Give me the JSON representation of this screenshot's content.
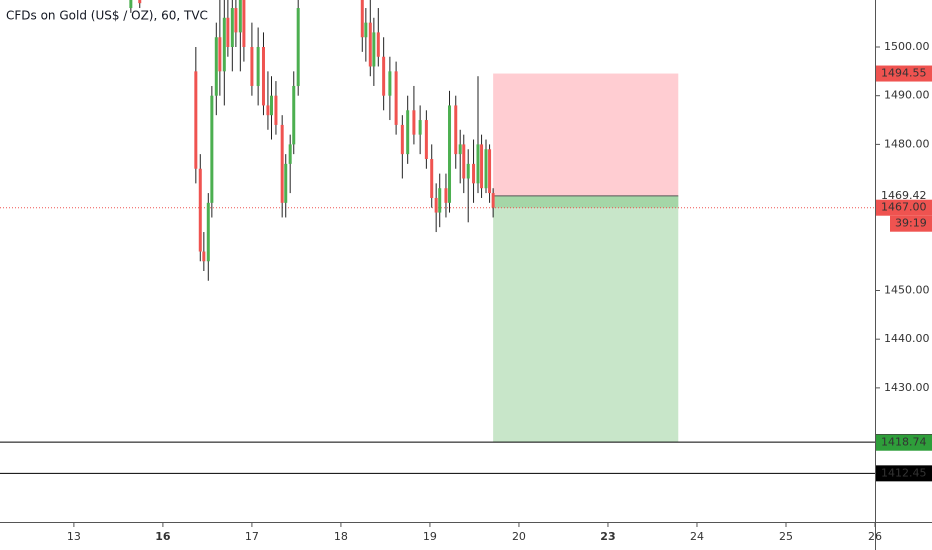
{
  "chart_data": {
    "type": "candlestick",
    "title": "CFDs on Gold (US$ / OZ), 60, TVC",
    "up_color": "#4caf50",
    "down_color": "#ef5350",
    "xlim": [
      -0.83,
      9.0
    ],
    "xticks": [
      {
        "value": 0,
        "label": "13"
      },
      {
        "value": 1,
        "label": "16"
      },
      {
        "value": 2,
        "label": "17"
      },
      {
        "value": 3,
        "label": "18"
      },
      {
        "value": 4,
        "label": "19"
      },
      {
        "value": 5,
        "label": "20"
      },
      {
        "value": 6,
        "label": "23"
      },
      {
        "value": 7,
        "label": "24"
      },
      {
        "value": 8,
        "label": "25"
      },
      {
        "value": 9,
        "label": "26"
      }
    ],
    "ylim": [
      1402.46,
      1509.65
    ],
    "yticks": [
      {
        "value": 1500,
        "label": "1500.00"
      },
      {
        "value": 1490,
        "label": "1490.00"
      },
      {
        "value": 1480,
        "label": "1480.00"
      },
      {
        "value": 1450,
        "label": "1450.00"
      },
      {
        "value": 1440,
        "label": "1440.00"
      },
      {
        "value": 1430,
        "label": "1430.00"
      }
    ],
    "x": [
      0.64,
      0.74,
      1.37,
      1.42,
      1.46,
      1.51,
      1.55,
      1.6,
      1.64,
      1.69,
      1.73,
      1.78,
      1.82,
      1.87,
      1.91,
      2.0,
      2.07,
      2.13,
      2.18,
      2.22,
      2.27,
      2.34,
      2.38,
      2.43,
      2.47,
      2.52,
      3.24,
      3.28,
      3.33,
      3.37,
      3.42,
      3.48,
      3.55,
      3.62,
      3.69,
      3.75,
      3.82,
      3.89,
      3.96,
      4.02,
      4.07,
      4.11,
      4.18,
      4.22,
      4.29,
      4.34,
      4.38,
      4.43,
      4.49,
      4.54,
      4.58,
      4.63,
      4.67,
      4.71
    ],
    "open": [
      1508,
      1511,
      1495,
      1475,
      1458,
      1456,
      1468,
      1490,
      1502,
      1495,
      1506,
      1500,
      1508,
      1503,
      1510,
      1500,
      1492,
      1500,
      1488,
      1486,
      1490,
      1484,
      1468,
      1476,
      1480,
      1492,
      1512,
      1502,
      1505,
      1496,
      1503,
      1498,
      1490,
      1495,
      1484,
      1478,
      1487,
      1482,
      1485,
      1477,
      1469,
      1466,
      1471,
      1468,
      1488,
      1478,
      1480,
      1473,
      1476,
      1472,
      1480,
      1471,
      1479,
      1470
    ],
    "high": [
      1513,
      1514,
      1500,
      1478,
      1462,
      1470,
      1492,
      1505,
      1512,
      1510,
      1513,
      1512,
      1513,
      1512,
      1514,
      1505,
      1504,
      1503,
      1495,
      1494,
      1493,
      1486,
      1478,
      1482,
      1495,
      1510,
      1513,
      1508,
      1510,
      1506,
      1508,
      1502,
      1498,
      1497,
      1486,
      1490,
      1492,
      1488,
      1487,
      1480,
      1472,
      1474,
      1474,
      1491,
      1490,
      1483,
      1482,
      1479,
      1481,
      1494,
      1482,
      1481,
      1480,
      1471
    ],
    "low": [
      1507,
      1508,
      1472,
      1456,
      1454,
      1452,
      1465,
      1486,
      1490,
      1488,
      1498,
      1495,
      1500,
      1495,
      1497,
      1490,
      1488,
      1486,
      1483,
      1481,
      1482,
      1465,
      1465,
      1470,
      1478,
      1490,
      1499,
      1497,
      1494,
      1492,
      1496,
      1487,
      1485,
      1482,
      1473,
      1476,
      1480,
      1478,
      1475,
      1467,
      1462,
      1463,
      1465,
      1466,
      1475,
      1472,
      1470,
      1464,
      1468,
      1470,
      1469,
      1470,
      1468,
      1465
    ],
    "close": [
      1511,
      1509,
      1475,
      1458,
      1456,
      1468,
      1490,
      1502,
      1495,
      1506,
      1500,
      1508,
      1503,
      1510,
      1500,
      1492,
      1500,
      1488,
      1486,
      1490,
      1484,
      1468,
      1476,
      1480,
      1492,
      1508,
      1502,
      1505,
      1496,
      1503,
      1498,
      1490,
      1495,
      1484,
      1478,
      1487,
      1482,
      1485,
      1477,
      1469,
      1466,
      1471,
      1468,
      1488,
      1478,
      1480,
      1473,
      1476,
      1472,
      1480,
      1471,
      1479,
      1470,
      1467
    ],
    "position": {
      "start": 4.71,
      "end": 6.79,
      "stop": 1494.55,
      "entry": 1469.42,
      "target": 1418.85,
      "stop_color": "#ffcdd2",
      "target_color": "#c8e6c9",
      "entry_color": "#a5d6a7"
    },
    "current_price": 1467.0,
    "horizontal_lines": [
      1418.85,
      1412.45
    ],
    "price_labels": [
      {
        "value": 1494.55,
        "label": "1494.55",
        "background": "#ef5350",
        "text_color": "#ffffff"
      },
      {
        "value": 1469.42,
        "label": "1469.42",
        "background": "#ffffff",
        "text_color": "#131722"
      },
      {
        "value": 1467.0,
        "label": "1467.00",
        "background": "#ef5350",
        "text_color": "#ffffff"
      },
      {
        "value": 1418.85,
        "label": "1418.85",
        "background": "#000000",
        "text_color": "#ffffff"
      },
      {
        "value": 1418.74,
        "label": "1418.74",
        "background": "#2e9e3a",
        "text_color": "#ffffff"
      },
      {
        "value": 1412.45,
        "label": "1412.45",
        "background": "#000000",
        "text_color": "#ffffff"
      }
    ],
    "countdown": "39:19"
  }
}
